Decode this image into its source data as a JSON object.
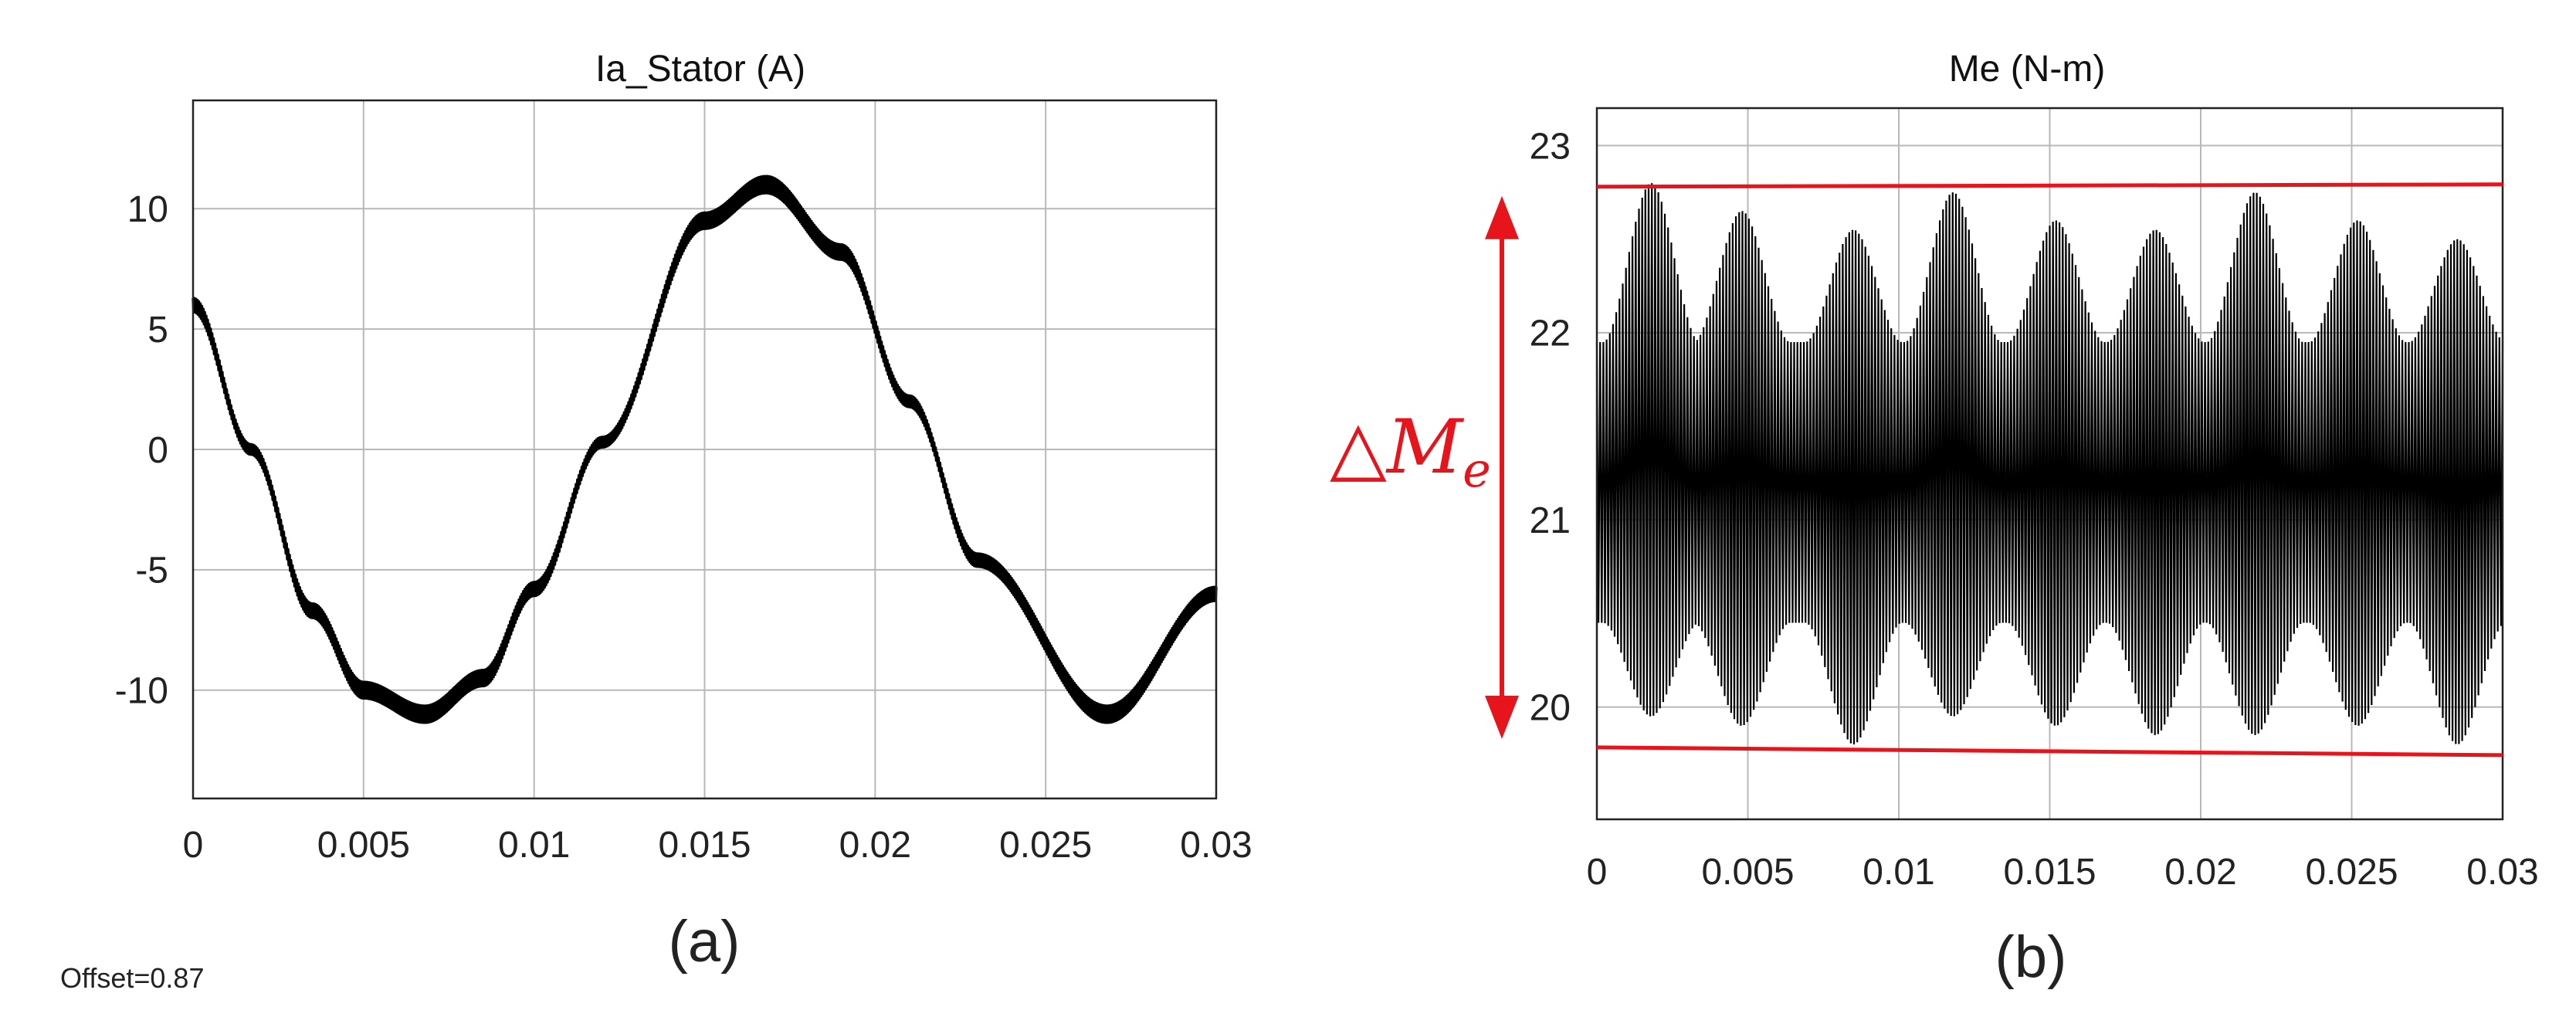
{
  "chart_data": [
    {
      "type": "line",
      "title": "Ia_Stator (A)",
      "xlabel": "",
      "ylabel": "",
      "xlim": [
        0,
        0.03
      ],
      "ylim": [
        -14.5,
        14.5
      ],
      "x_ticks": [
        "0",
        "0.005",
        "0.01",
        "0.015",
        "0.02",
        "0.025",
        "0.03"
      ],
      "x_tick_values": [
        0,
        0.005,
        0.01,
        0.015,
        0.02,
        0.025,
        0.03
      ],
      "y_ticks": [
        "10",
        "5",
        "0",
        "-5",
        "-10"
      ],
      "y_tick_values": [
        10,
        5,
        0,
        -5,
        -10
      ],
      "grid": true,
      "caption": "(a)",
      "series": [
        {
          "color": "#000000",
          "ripple_amplitude": 0.35,
          "x": [
            0,
            0.0017,
            0.0035,
            0.005,
            0.0068,
            0.0085,
            0.01,
            0.012,
            0.015,
            0.0168,
            0.019,
            0.021,
            0.023,
            0.0268,
            0.03
          ],
          "y": [
            6.0,
            0.0,
            -6.7,
            -10.0,
            -11.0,
            -9.5,
            -5.8,
            0.3,
            9.5,
            11.0,
            8.2,
            2.0,
            -4.6,
            -11.0,
            -6.0
          ]
        }
      ]
    },
    {
      "type": "line",
      "title": "Me (N-m)",
      "xlabel": "",
      "ylabel": "",
      "xlim": [
        0,
        0.03
      ],
      "ylim": [
        19.4,
        23.2
      ],
      "x_ticks": [
        "0",
        "0.005",
        "0.01",
        "0.015",
        "0.02",
        "0.025",
        "0.03"
      ],
      "x_tick_values": [
        0,
        0.005,
        0.01,
        0.015,
        0.02,
        0.025,
        0.03
      ],
      "y_ticks": [
        "23",
        "22",
        "21",
        "20"
      ],
      "y_tick_values": [
        23,
        22,
        21,
        20
      ],
      "grid": true,
      "caption": "(b)",
      "series": [
        {
          "color": "#000000",
          "center": 21.2,
          "peak_times": [
            0.0018,
            0.0048,
            0.0085,
            0.0118,
            0.0152,
            0.0185,
            0.0218,
            0.0252,
            0.0285
          ],
          "upper_peaks": [
            22.8,
            22.65,
            22.55,
            22.75,
            22.6,
            22.55,
            22.75,
            22.6,
            22.5
          ],
          "lower_peaks": [
            19.95,
            19.9,
            19.8,
            19.95,
            19.9,
            19.85,
            19.85,
            19.9,
            19.8
          ],
          "upper_min": 21.95,
          "lower_max": 20.45
        }
      ],
      "annotations": {
        "upper_limit": 22.78,
        "lower_limit": 19.78,
        "delta_label_main": "△M",
        "delta_label_sub": "e",
        "color": "#e8141c"
      }
    }
  ],
  "footer": {
    "offset_text": "Offset=0.87"
  }
}
